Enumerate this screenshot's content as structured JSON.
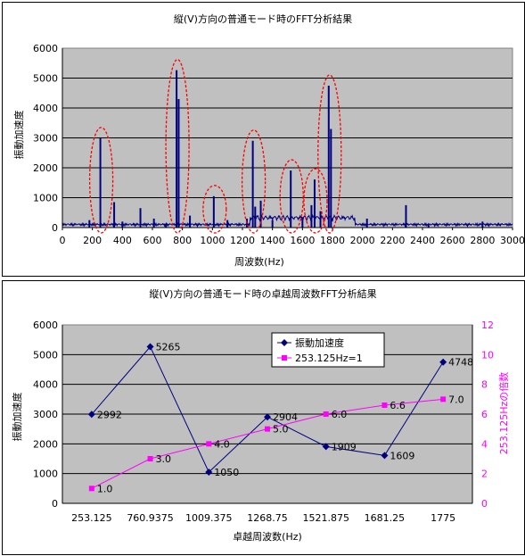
{
  "chart_data": [
    {
      "type": "spectrum",
      "title": "縦(V)方向の普通モード時のFFT分析結果",
      "xlabel": "周波数(Hz)",
      "ylabel": "振動加速度",
      "xlim": [
        0,
        3000
      ],
      "ylim": [
        0,
        6000
      ],
      "x_ticks": [
        0,
        200,
        400,
        600,
        800,
        1000,
        1200,
        1400,
        1600,
        1800,
        2000,
        2200,
        2400,
        2600,
        2800,
        3000
      ],
      "y_ticks": [
        0,
        1000,
        2000,
        3000,
        4000,
        5000,
        6000
      ],
      "grid": true,
      "background": "#c0c0c0",
      "line_color": "#000080",
      "highlight_color": "#ff0000",
      "peaks": [
        {
          "x": 180,
          "y": 250
        },
        {
          "x": 253,
          "y": 2992
        },
        {
          "x": 345,
          "y": 850
        },
        {
          "x": 400,
          "y": 200
        },
        {
          "x": 520,
          "y": 650
        },
        {
          "x": 610,
          "y": 300
        },
        {
          "x": 690,
          "y": 120
        },
        {
          "x": 761,
          "y": 5265
        },
        {
          "x": 775,
          "y": 4300
        },
        {
          "x": 850,
          "y": 400
        },
        {
          "x": 1009,
          "y": 1050
        },
        {
          "x": 1100,
          "y": 250
        },
        {
          "x": 1230,
          "y": 300
        },
        {
          "x": 1269,
          "y": 2904
        },
        {
          "x": 1285,
          "y": 700
        },
        {
          "x": 1322,
          "y": 900
        },
        {
          "x": 1400,
          "y": 250
        },
        {
          "x": 1522,
          "y": 1909
        },
        {
          "x": 1600,
          "y": 350
        },
        {
          "x": 1660,
          "y": 750
        },
        {
          "x": 1681,
          "y": 1609
        },
        {
          "x": 1720,
          "y": 550
        },
        {
          "x": 1775,
          "y": 4748
        },
        {
          "x": 1790,
          "y": 3300
        },
        {
          "x": 2030,
          "y": 300
        },
        {
          "x": 2290,
          "y": 750
        },
        {
          "x": 2440,
          "y": 100
        },
        {
          "x": 2800,
          "y": 200
        }
      ],
      "highlighted_peaks": [
        253,
        761,
        1009,
        1269,
        1522,
        1681,
        1775
      ]
    },
    {
      "type": "line",
      "title": "縦(V)方向の普通モード時の卓越周波数FFT分析結果",
      "xlabel": "卓越周波数(Hz)",
      "ylabel": "振動加速度",
      "y2label": "253.125Hzの倍数",
      "categories": [
        "253.125",
        "760.9375",
        "1009.375",
        "1268.75",
        "1521.875",
        "1681.25",
        "1775"
      ],
      "ylim": [
        0,
        6000
      ],
      "y2lim": [
        0,
        12
      ],
      "y_ticks": [
        0,
        1000,
        2000,
        3000,
        4000,
        5000,
        6000
      ],
      "y2_ticks": [
        0,
        2,
        4,
        6,
        8,
        10,
        12
      ],
      "grid": true,
      "background": "#c0c0c0",
      "legend_position": "top-right",
      "series": [
        {
          "name": "振動加速度",
          "axis": "left",
          "color": "#000080",
          "values": [
            2992,
            5265,
            1050,
            2904,
            1909,
            1609,
            4748
          ],
          "labels": [
            "2992",
            "5265",
            "1050",
            "2904",
            "1909",
            "1609",
            "4748"
          ]
        },
        {
          "name": "253.125Hz=1",
          "axis": "right",
          "color": "#ff00ff",
          "values": [
            1.0,
            3.0,
            4.0,
            5.0,
            6.0,
            6.6,
            7.0
          ],
          "labels": [
            "1.0",
            "3.0",
            "4.0",
            "5.0",
            "6.0",
            "6.6",
            "7.0"
          ]
        }
      ]
    }
  ]
}
